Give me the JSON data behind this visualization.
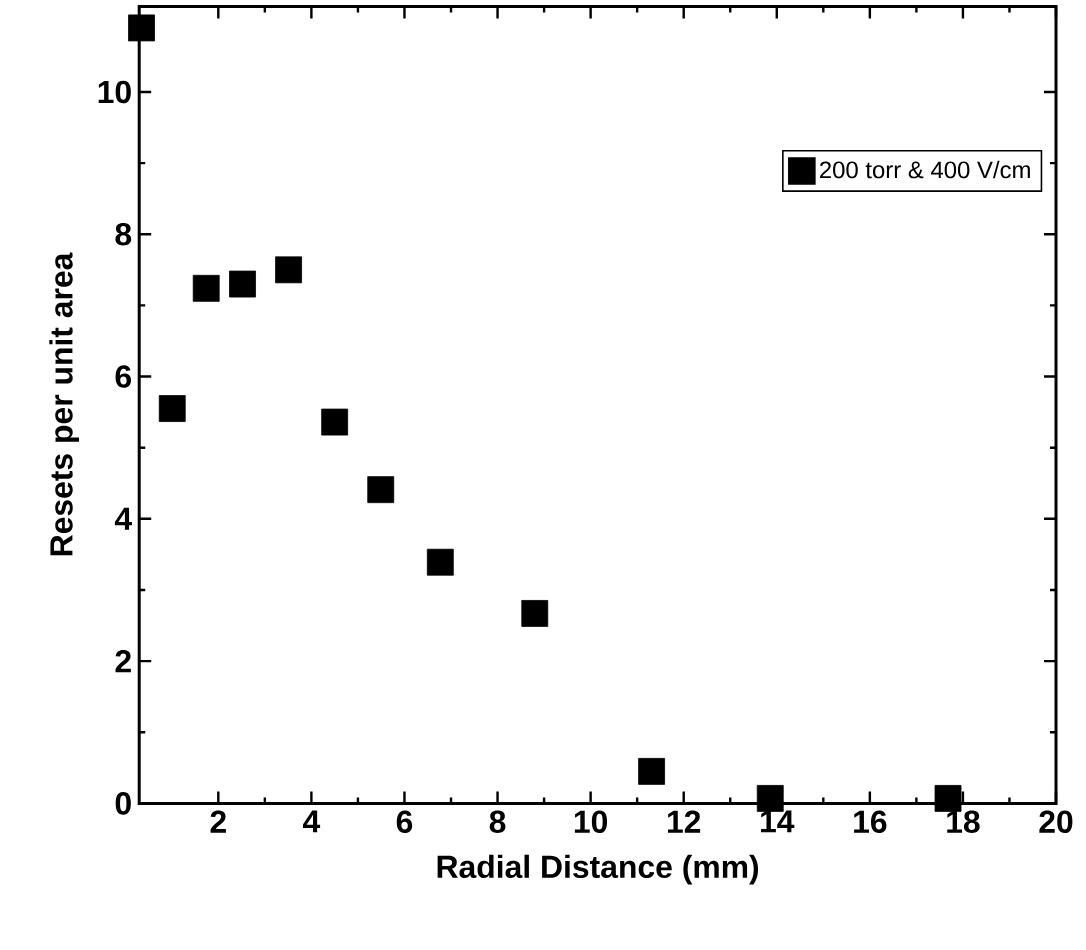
{
  "chart_data": {
    "type": "scatter",
    "xlabel": "Radial Distance (mm)",
    "ylabel": "Resets per unit area",
    "series": [
      {
        "name": "200 torr & 400 V/cm",
        "color": "#000000",
        "x": [
          0.35,
          1.01,
          1.74,
          2.52,
          3.51,
          4.5,
          5.49,
          6.77,
          8.8,
          11.31,
          13.86,
          17.68
        ],
        "values": [
          10.9,
          5.55,
          7.24,
          7.3,
          7.5,
          5.36,
          4.41,
          3.39,
          2.67,
          0.45,
          0.07,
          0.07
        ]
      }
    ],
    "marker": "square",
    "legend": "top right",
    "grid": false,
    "xlim": [
      0.3,
      20
    ],
    "ylim": [
      0,
      11.2
    ],
    "xticks": [
      2,
      4,
      6,
      8,
      10,
      12,
      14,
      16,
      18,
      20
    ],
    "yticks": [
      0,
      2,
      4,
      6,
      8,
      10
    ]
  }
}
